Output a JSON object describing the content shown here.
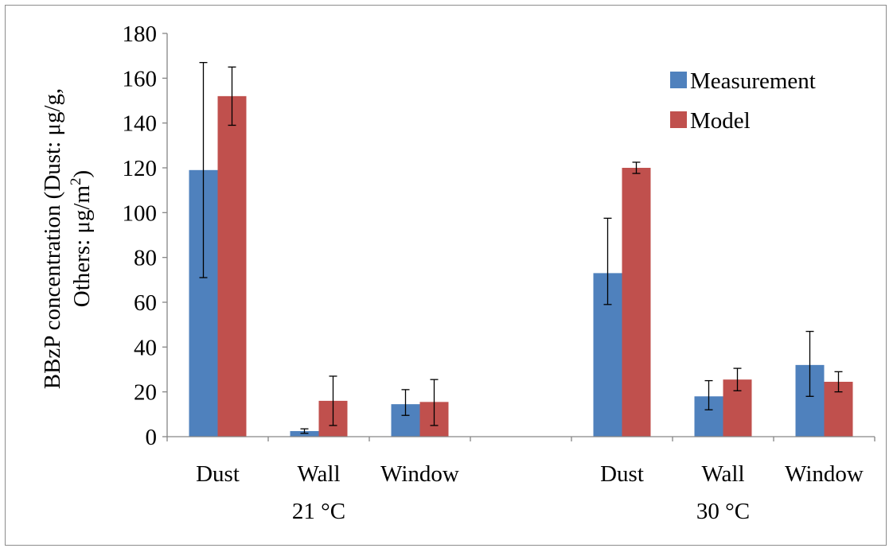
{
  "chart_data": {
    "type": "bar",
    "title": "",
    "ylabel_line1": "BBzP concentration (Dust: μg/g,",
    "ylabel_line2": "Others: μg/m",
    "ylabel_superscript": "2",
    "ylabel_line2_end": ")",
    "ylim": [
      0,
      180
    ],
    "yticks": [
      0,
      20,
      40,
      60,
      80,
      100,
      120,
      140,
      160,
      180
    ],
    "grid": false,
    "legend_position": "top-right",
    "groups": [
      {
        "label": "21 °C",
        "categories": [
          "Dust",
          "Wall",
          "Window"
        ]
      },
      {
        "label": "30 °C",
        "categories": [
          "Dust",
          "Wall",
          "Window"
        ]
      }
    ],
    "categories": [
      "Dust",
      "Wall",
      "Window",
      "Dust",
      "Wall",
      "Window"
    ],
    "series": [
      {
        "name": "Measurement",
        "color": "#4f81bd",
        "values": [
          119,
          2.5,
          14.5,
          73,
          18,
          32
        ],
        "err_low": [
          71,
          1.5,
          9.5,
          59,
          12,
          18
        ],
        "err_high": [
          167,
          3.5,
          21,
          97.5,
          25,
          47
        ]
      },
      {
        "name": "Model",
        "color": "#c0504d",
        "values": [
          152,
          16,
          15.5,
          120,
          25.5,
          24.5
        ],
        "err_low": [
          139,
          5,
          5,
          117.5,
          20.5,
          20
        ],
        "err_high": [
          165,
          27,
          25.5,
          122.5,
          30.5,
          29
        ]
      }
    ]
  }
}
